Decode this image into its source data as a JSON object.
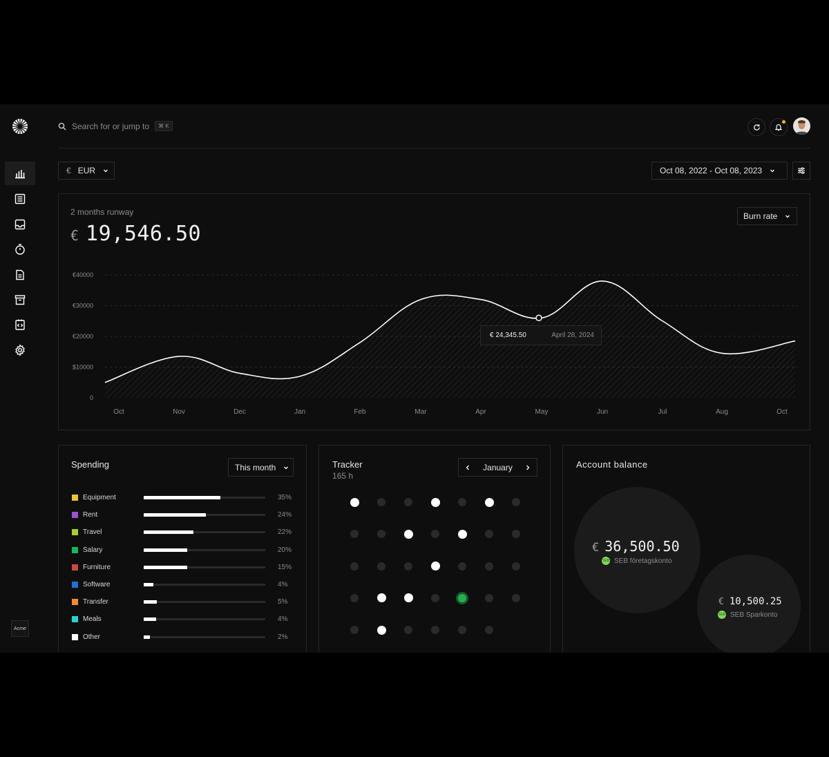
{
  "header": {
    "search_placeholder": "Search for or jump to",
    "shortcut": "⌘ K"
  },
  "sidebar": {
    "items": [
      {
        "icon": "bar-chart-icon",
        "active": true
      },
      {
        "icon": "list-icon"
      },
      {
        "icon": "inbox-icon"
      },
      {
        "icon": "timer-icon"
      },
      {
        "icon": "document-icon"
      },
      {
        "icon": "archive-icon"
      },
      {
        "icon": "code-file-icon"
      },
      {
        "icon": "gear-icon"
      }
    ],
    "workspace": "Acme"
  },
  "toolbar": {
    "currency_symbol": "€",
    "currency": "EUR",
    "date_range": "Oct 08, 2022 - Oct 08, 2023"
  },
  "runway": {
    "label": "2 months runway",
    "currency": "€",
    "amount": "19,546.50",
    "metric_select": "Burn rate",
    "tooltip": {
      "value": "€ 24,345.50",
      "date": "April 28, 2024"
    }
  },
  "chart_data": {
    "type": "area",
    "x": [
      "Oct",
      "Nov",
      "Dec",
      "Jan",
      "Feb",
      "Mar",
      "Apr",
      "May",
      "Jun",
      "Jul",
      "Aug",
      "Oct"
    ],
    "y_ticks": [
      "€40000",
      "€30000",
      "€20000",
      "$10000",
      "0"
    ],
    "ylim": [
      0,
      40000
    ],
    "series": [
      {
        "values": [
          5000,
          13500,
          8000,
          7000,
          18000,
          32000,
          32000,
          26000,
          38000,
          25000,
          14500,
          18500
        ]
      }
    ],
    "highlight": {
      "x": "May",
      "y": 26000
    },
    "grid": true
  },
  "spending": {
    "title": "Spending",
    "period": "This month",
    "items": [
      {
        "label": "Equipment",
        "pct": "35%",
        "fraction": 0.63,
        "color": "#f2c12e"
      },
      {
        "label": "Rent",
        "pct": "24%",
        "fraction": 0.51,
        "color": "#a04fd8"
      },
      {
        "label": "Travel",
        "pct": "22%",
        "fraction": 0.41,
        "color": "#a6d321"
      },
      {
        "label": "Salary",
        "pct": "20%",
        "fraction": 0.36,
        "color": "#16b85a"
      },
      {
        "label": "Furniture",
        "pct": "15%",
        "fraction": 0.36,
        "color": "#d04545"
      },
      {
        "label": "Software",
        "pct": "4%",
        "fraction": 0.08,
        "color": "#1f6fe0"
      },
      {
        "label": "Transfer",
        "pct": "5%",
        "fraction": 0.11,
        "color": "#f58a2c"
      },
      {
        "label": "Meals",
        "pct": "4%",
        "fraction": 0.1,
        "color": "#22d3d3"
      },
      {
        "label": "Other",
        "pct": "2%",
        "fraction": 0.05,
        "color": "#ffffff"
      }
    ]
  },
  "tracker": {
    "title": "Tracker",
    "hours": "165 h",
    "month": "January",
    "days": [
      "on",
      "off",
      "off",
      "on",
      "off",
      "on",
      "off",
      "off",
      "off",
      "on",
      "off",
      "on",
      "off",
      "off",
      "off",
      "off",
      "off",
      "on",
      "off",
      "off",
      "off",
      "off",
      "on",
      "on",
      "off",
      "green",
      "off",
      "off",
      "off",
      "on",
      "off",
      "off",
      "off",
      "off"
    ]
  },
  "account_balance": {
    "title": "Account balance",
    "accounts": [
      {
        "currency": "€",
        "amount": "36,500.50",
        "name": "SEB företagskonto",
        "bank": "SEB"
      },
      {
        "currency": "€",
        "amount": "10,500.25",
        "name": "SEB Sparkonto",
        "bank": "SEB"
      }
    ]
  }
}
